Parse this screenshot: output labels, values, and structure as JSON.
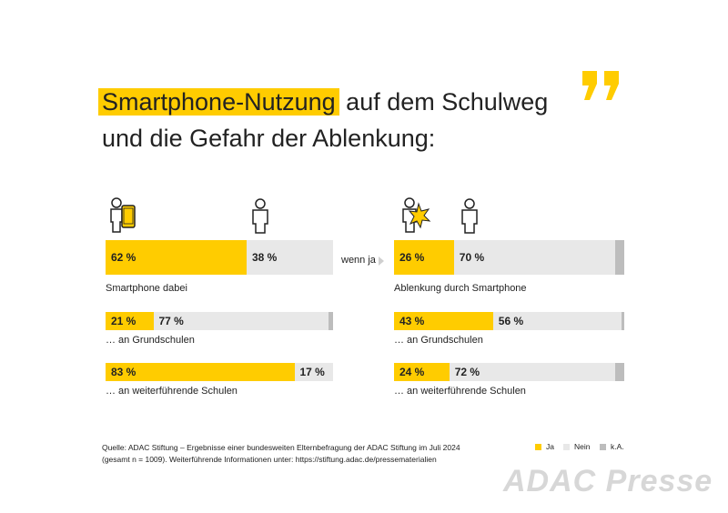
{
  "title": {
    "highlight": "Smartphone-Nutzung",
    "rest": "auf dem Schulweg",
    "line2": "und die Gefahr der Ablenkung:"
  },
  "wenn_ja": "wenn ja",
  "colors": {
    "ja": "#ffcc00",
    "nein": "#e8e8e8",
    "ka": "#bdbdbd"
  },
  "chart_data": {
    "type": "bar",
    "series_names": [
      "Ja",
      "Nein",
      "k.A."
    ],
    "left": {
      "rows": [
        {
          "label": "Smartphone dabei",
          "ja": 62,
          "nein": 38,
          "ka": 0,
          "ja_text": "62 %",
          "nein_text": "38 %"
        },
        {
          "label": "… an Grundschulen",
          "ja": 21,
          "nein": 77,
          "ka": 2,
          "ja_text": "21 %",
          "nein_text": "77 %"
        },
        {
          "label": "… an weiterführende Schulen",
          "ja": 83,
          "nein": 17,
          "ka": 0,
          "ja_text": "83 %",
          "nein_text": "17 %"
        }
      ]
    },
    "right": {
      "rows": [
        {
          "label": "Ablenkung durch Smartphone",
          "ja": 26,
          "nein": 70,
          "ka": 4,
          "ja_text": "26 %",
          "nein_text": "70 %"
        },
        {
          "label": "… an Grundschulen",
          "ja": 43,
          "nein": 56,
          "ka": 1,
          "ja_text": "43 %",
          "nein_text": "56 %"
        },
        {
          "label": "… an weiterführende Schulen",
          "ja": 24,
          "nein": 72,
          "ka": 4,
          "ja_text": "24 %",
          "nein_text": "72 %"
        }
      ]
    }
  },
  "source": {
    "line1": "Quelle: ADAC Stiftung – Ergebnisse einer bundesweiten Elternbefragung der ADAC Stiftung im Juli 2024",
    "line2": "(gesamt n = 1009). Weiterführende Informationen unter: https://stiftung.adac.de/pressematerialien"
  },
  "legend": {
    "ja": "Ja",
    "nein": "Nein",
    "ka": "k.A."
  },
  "watermark": "ADAC Presse"
}
